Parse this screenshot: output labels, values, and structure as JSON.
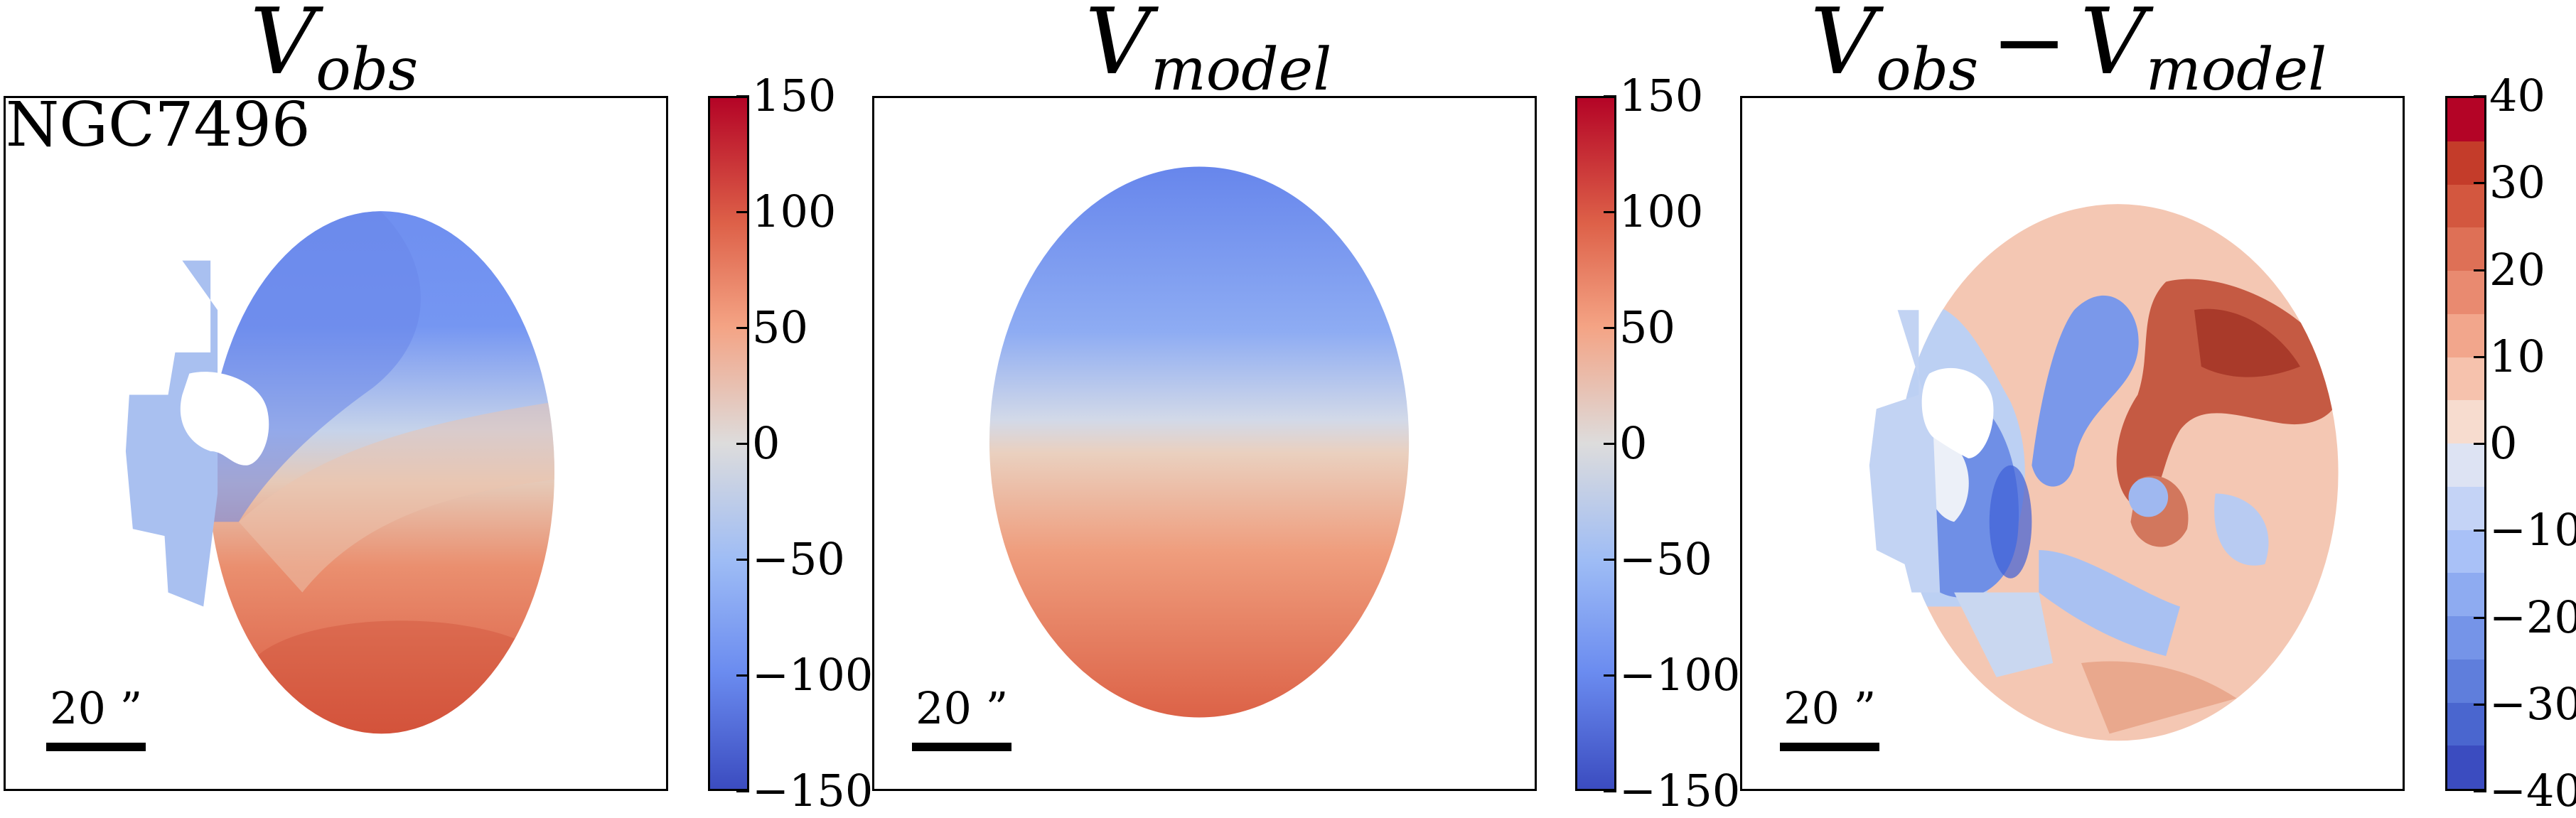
{
  "panels": [
    {
      "title_main": "V",
      "title_sub": "obs"
    },
    {
      "title_main": "V",
      "title_sub": "model"
    },
    {
      "title_main": "V",
      "title_sub": "obs",
      "title_op": "−",
      "title_main2": "V",
      "title_sub2": "model"
    }
  ],
  "galaxy_name": "NGC7496",
  "scale_bar_label": "20 ”",
  "colorbar_velocity": {
    "ticks": [
      "150",
      "100",
      "50",
      "0",
      "−50",
      "−100",
      "−150"
    ],
    "range": [
      -150,
      150
    ]
  },
  "colorbar_residual": {
    "ticks": [
      "40",
      "30",
      "20",
      "10",
      "0",
      "−10",
      "−20",
      "−30",
      "−40"
    ],
    "range": [
      -40,
      40
    ]
  },
  "colormap": "coolwarm",
  "colors": {
    "low": "#3b4cc0",
    "mid": "#dddcdc",
    "high": "#b40426"
  }
}
